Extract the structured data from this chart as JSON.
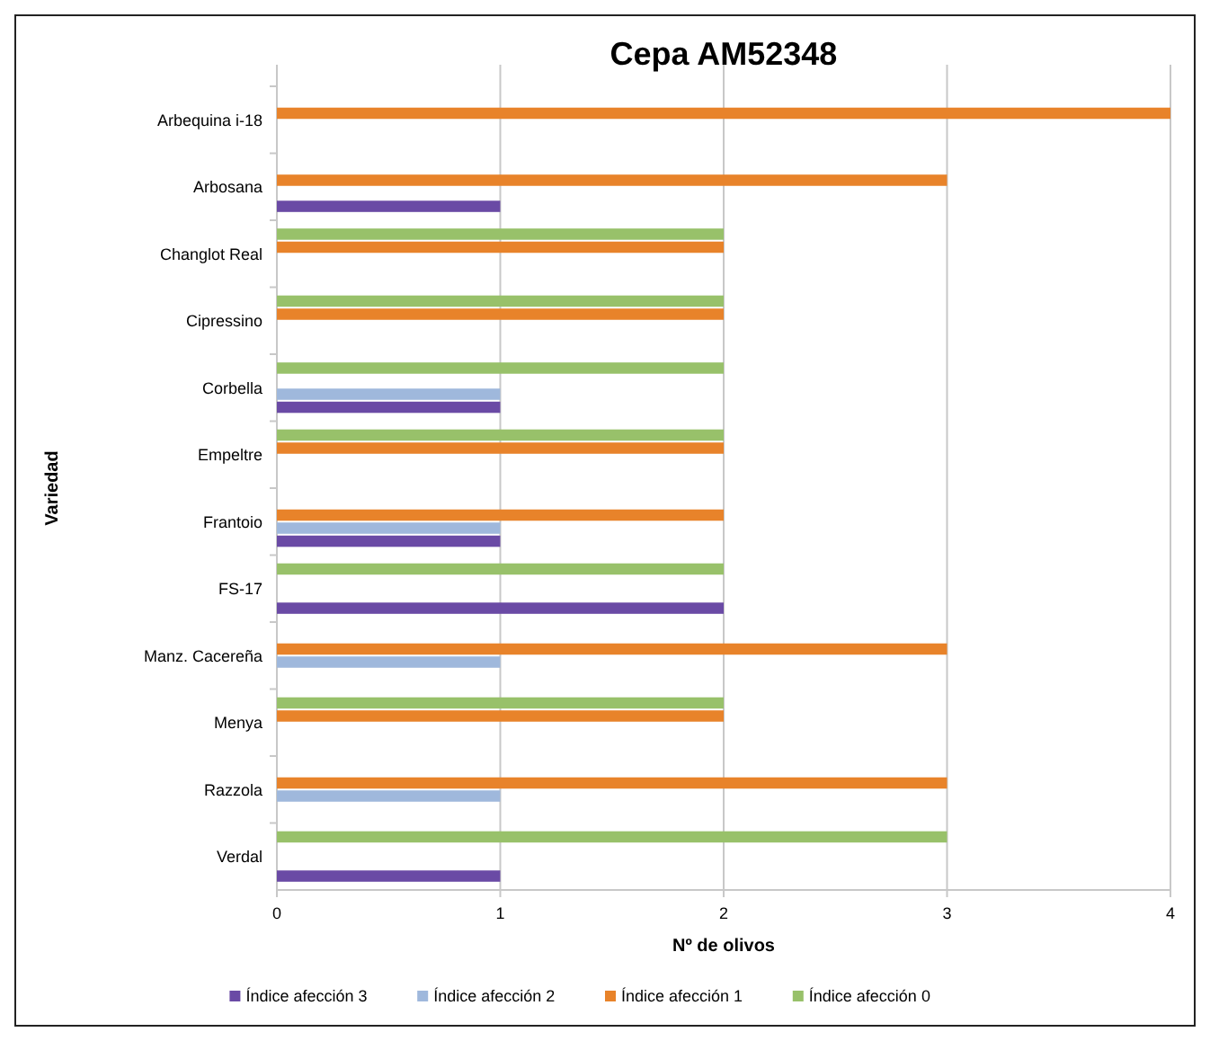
{
  "chart_data": {
    "type": "bar",
    "orientation": "horizontal",
    "title": "Cepa AM52348",
    "xlabel": "Nº de olivos",
    "ylabel": "Variedad",
    "categories": [
      "Arbequina i-18",
      "Arbosana",
      "Changlot Real",
      "Cipressino",
      "Corbella",
      "Empeltre",
      "Frantoio",
      "FS-17",
      "Manz. Cacereña",
      "Menya",
      "Razzola",
      "Verdal"
    ],
    "series": [
      {
        "name": "Índice afección 3",
        "color": "#6a4aa5",
        "values": [
          0,
          1,
          0,
          0,
          1,
          0,
          1,
          2,
          0,
          0,
          0,
          1
        ]
      },
      {
        "name": "Índice afección 2",
        "color": "#9fb8dc",
        "values": [
          0,
          0,
          0,
          0,
          1,
          0,
          1,
          0,
          1,
          0,
          1,
          0
        ]
      },
      {
        "name": "Índice afección 1",
        "color": "#e8832a",
        "values": [
          4,
          3,
          2,
          2,
          0,
          2,
          2,
          0,
          3,
          2,
          3,
          0
        ]
      },
      {
        "name": "Índice afección 0",
        "color": "#98c16a",
        "values": [
          0,
          0,
          2,
          2,
          2,
          2,
          0,
          2,
          0,
          2,
          0,
          3
        ]
      }
    ],
    "xlim": [
      0,
      4
    ],
    "xticks": [
      0,
      1,
      2,
      3,
      4
    ],
    "grid": "x",
    "legend": "bottom"
  }
}
